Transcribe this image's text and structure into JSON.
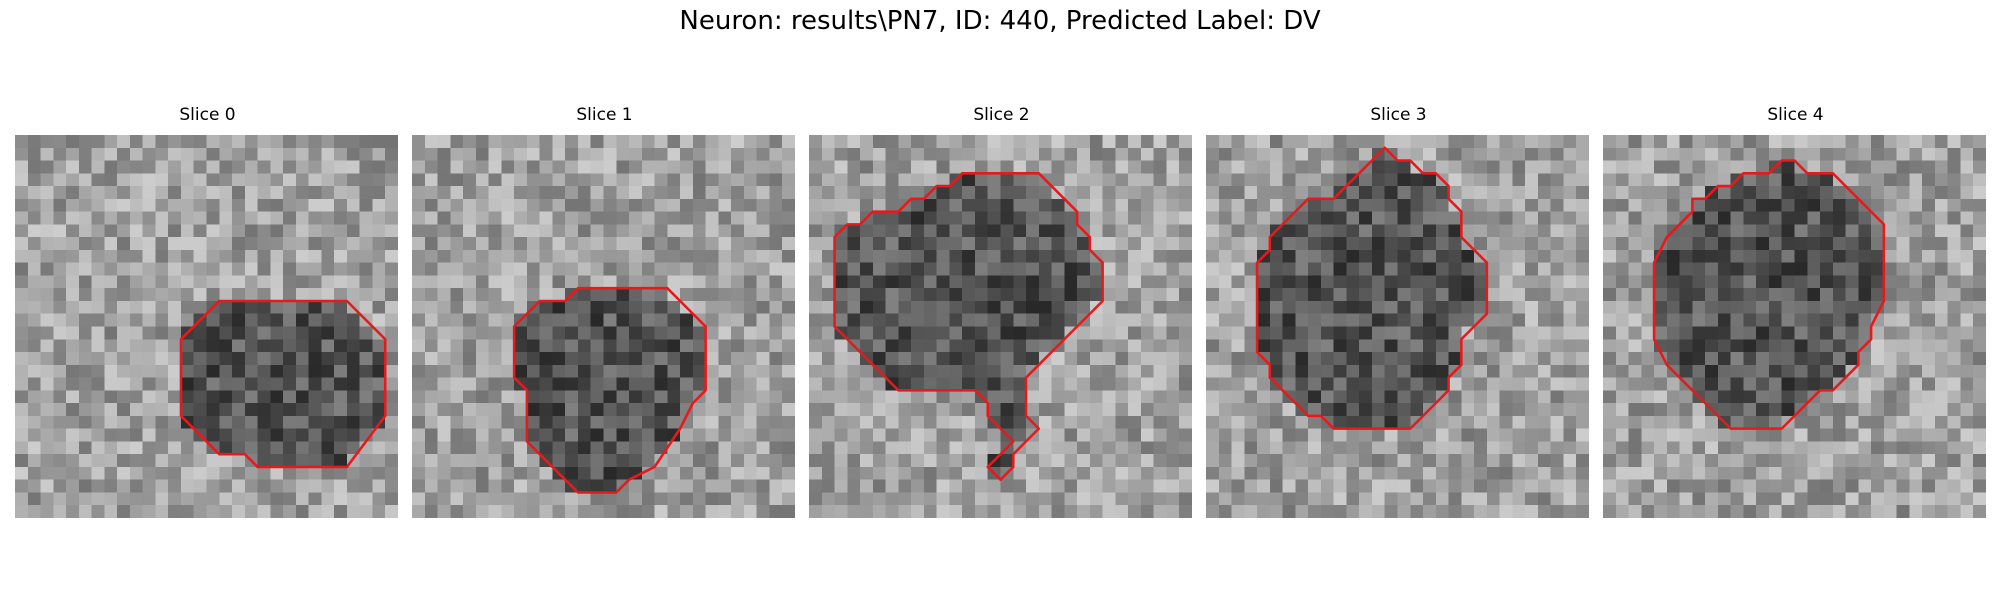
{
  "figure_title": "Neuron: results\\PN7, ID: 440, Predicted Label: DV",
  "contour_color": "#e8191c",
  "panels": [
    {
      "title": "Slice 0",
      "contour": [
        [
          20,
          13
        ],
        [
          26,
          13
        ],
        [
          29,
          16
        ],
        [
          29,
          22
        ],
        [
          26,
          26
        ],
        [
          19,
          26
        ],
        [
          18,
          25
        ],
        [
          16,
          25
        ],
        [
          13,
          22
        ],
        [
          13,
          16
        ],
        [
          16,
          13
        ]
      ]
    },
    {
      "title": "Slice 1",
      "contour": [
        [
          14,
          12
        ],
        [
          20,
          12
        ],
        [
          23,
          15
        ],
        [
          23,
          20
        ],
        [
          22,
          21
        ],
        [
          21,
          23
        ],
        [
          19,
          26
        ],
        [
          17,
          27
        ],
        [
          16,
          28
        ],
        [
          13,
          28
        ],
        [
          12,
          27
        ],
        [
          11,
          26
        ],
        [
          10,
          25
        ],
        [
          9,
          24
        ],
        [
          9,
          23
        ],
        [
          9,
          20
        ],
        [
          8,
          19
        ],
        [
          8,
          15
        ],
        [
          9,
          14
        ],
        [
          10,
          13
        ],
        [
          12,
          13
        ],
        [
          13,
          12
        ]
      ]
    },
    {
      "title": "Slice 2",
      "contour": [
        [
          11,
          4
        ],
        [
          12,
          3
        ],
        [
          18,
          3
        ],
        [
          19,
          4
        ],
        [
          20,
          5
        ],
        [
          21,
          6
        ],
        [
          21,
          7
        ],
        [
          22,
          8
        ],
        [
          22,
          9
        ],
        [
          23,
          10
        ],
        [
          23,
          13
        ],
        [
          22,
          14
        ],
        [
          21,
          15
        ],
        [
          20,
          16
        ],
        [
          19,
          17
        ],
        [
          18,
          18
        ],
        [
          17,
          19
        ],
        [
          17,
          22
        ],
        [
          18,
          23
        ],
        [
          17,
          24
        ],
        [
          16,
          25
        ],
        [
          16,
          26
        ],
        [
          15,
          27
        ],
        [
          14,
          26
        ],
        [
          15,
          25
        ],
        [
          16,
          24
        ],
        [
          15,
          23
        ],
        [
          14,
          22
        ],
        [
          14,
          21
        ],
        [
          13,
          20
        ],
        [
          7,
          20
        ],
        [
          6,
          19
        ],
        [
          5,
          18
        ],
        [
          4,
          17
        ],
        [
          3,
          16
        ],
        [
          2,
          15
        ],
        [
          2,
          12
        ],
        [
          2,
          10
        ],
        [
          2,
          8
        ],
        [
          3,
          7
        ],
        [
          4,
          7
        ],
        [
          5,
          6
        ],
        [
          7,
          6
        ],
        [
          8,
          5
        ],
        [
          9,
          5
        ],
        [
          10,
          4
        ]
      ]
    },
    {
      "title": "Slice 3",
      "contour": [
        [
          14,
          1
        ],
        [
          15,
          2
        ],
        [
          16,
          2
        ],
        [
          17,
          3
        ],
        [
          18,
          3
        ],
        [
          19,
          4
        ],
        [
          19,
          5
        ],
        [
          20,
          6
        ],
        [
          20,
          8
        ],
        [
          21,
          9
        ],
        [
          22,
          10
        ],
        [
          22,
          14
        ],
        [
          21,
          15
        ],
        [
          20,
          16
        ],
        [
          20,
          18
        ],
        [
          19,
          19
        ],
        [
          19,
          20
        ],
        [
          18,
          21
        ],
        [
          17,
          22
        ],
        [
          16,
          23
        ],
        [
          10,
          23
        ],
        [
          9,
          22
        ],
        [
          8,
          22
        ],
        [
          7,
          21
        ],
        [
          6,
          20
        ],
        [
          5,
          19
        ],
        [
          5,
          18
        ],
        [
          4,
          17
        ],
        [
          4,
          15
        ],
        [
          4,
          10
        ],
        [
          5,
          9
        ],
        [
          5,
          8
        ],
        [
          6,
          7
        ],
        [
          7,
          6
        ],
        [
          8,
          5
        ],
        [
          10,
          5
        ],
        [
          11,
          4
        ],
        [
          12,
          3
        ],
        [
          13,
          2
        ]
      ]
    },
    {
      "title": "Slice 4",
      "contour": [
        [
          14,
          2
        ],
        [
          15,
          2
        ],
        [
          16,
          3
        ],
        [
          18,
          3
        ],
        [
          19,
          4
        ],
        [
          20,
          5
        ],
        [
          21,
          6
        ],
        [
          22,
          7
        ],
        [
          22,
          13
        ],
        [
          21,
          15
        ],
        [
          21,
          16
        ],
        [
          20,
          17
        ],
        [
          20,
          18
        ],
        [
          19,
          19
        ],
        [
          18,
          20
        ],
        [
          17,
          20
        ],
        [
          16,
          21
        ],
        [
          15,
          22
        ],
        [
          14,
          23
        ],
        [
          10,
          23
        ],
        [
          9,
          22
        ],
        [
          8,
          21
        ],
        [
          7,
          20
        ],
        [
          6,
          19
        ],
        [
          5,
          18
        ],
        [
          4,
          16
        ],
        [
          4,
          10
        ],
        [
          5,
          8
        ],
        [
          6,
          7
        ],
        [
          7,
          6
        ],
        [
          7,
          5
        ],
        [
          8,
          5
        ],
        [
          9,
          4
        ],
        [
          10,
          4
        ],
        [
          11,
          3
        ],
        [
          13,
          3
        ]
      ]
    }
  ]
}
